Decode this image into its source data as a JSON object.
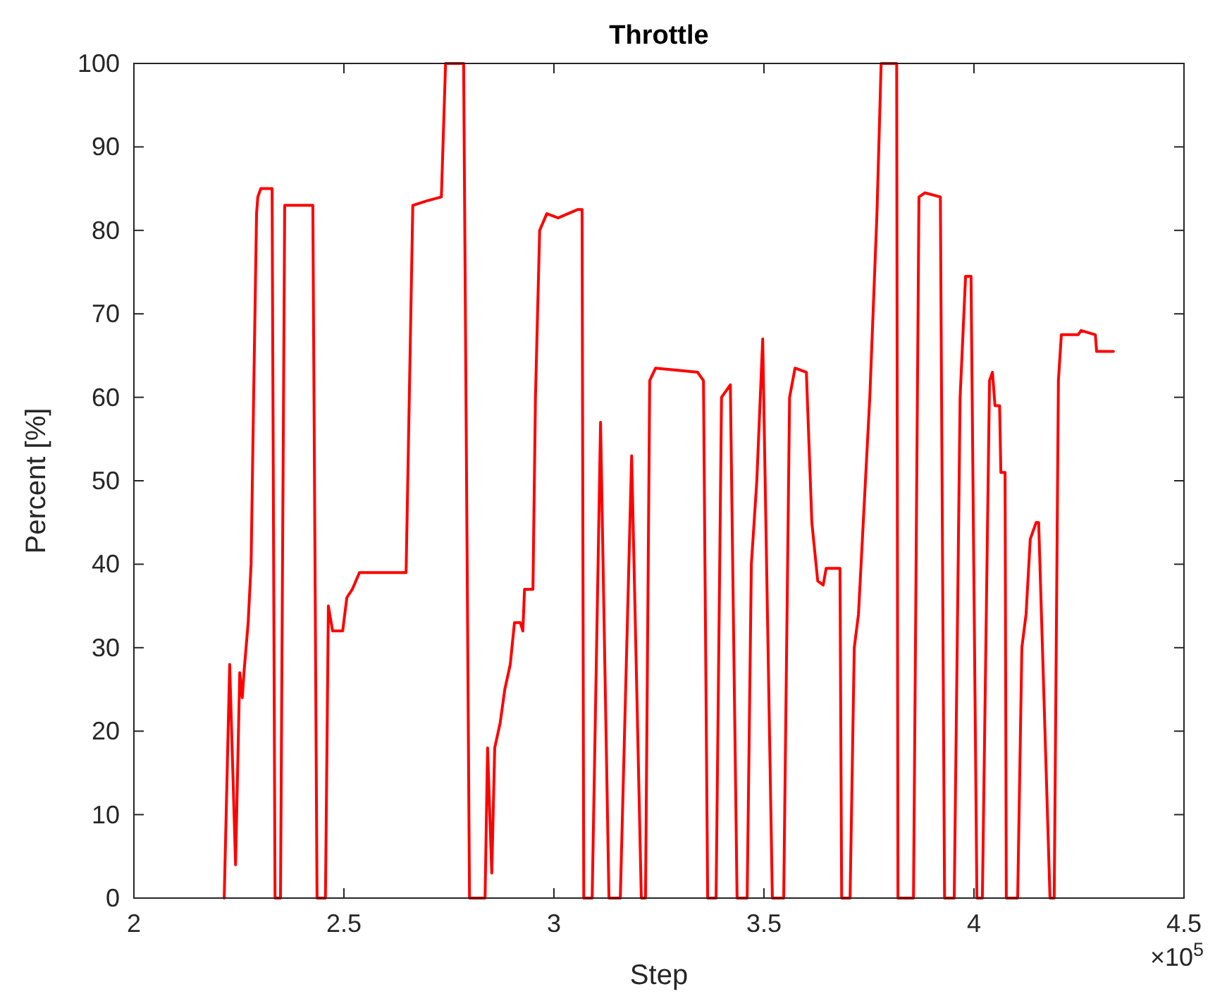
{
  "chart_data": {
    "type": "line",
    "title": "Throttle",
    "xlabel": "Step",
    "ylabel": "Percent [%]",
    "annotations": [
      "×10$^{5}$"
    ],
    "xlim": [
      2,
      4.5
    ],
    "xticks": [
      2,
      2.5,
      3,
      3.5,
      4,
      4.5
    ],
    "ylim": [
      0,
      100
    ],
    "yticks": [
      0,
      10,
      20,
      30,
      40,
      50,
      60,
      70,
      80,
      90,
      100
    ],
    "grid": false,
    "marker": "none",
    "line_style": "solid",
    "series": [
      {
        "color": "#ff0000",
        "x": [
          2.215,
          2.228,
          2.242,
          2.252,
          2.258,
          2.262,
          2.272,
          2.279,
          2.285,
          2.292,
          2.295,
          2.302,
          2.329,
          2.336,
          2.349,
          2.359,
          2.426,
          2.436,
          2.456,
          2.463,
          2.473,
          2.497,
          2.507,
          2.52,
          2.537,
          2.648,
          2.664,
          2.695,
          2.732,
          2.742,
          2.785,
          2.799,
          2.836,
          2.842,
          2.852,
          2.859,
          2.872,
          2.883,
          2.896,
          2.906,
          2.92,
          2.926,
          2.93,
          2.95,
          2.956,
          2.966,
          2.983,
          3.01,
          3.057,
          3.067,
          3.071,
          3.091,
          3.111,
          3.131,
          3.158,
          3.185,
          3.208,
          3.218,
          3.228,
          3.242,
          3.342,
          3.356,
          3.366,
          3.386,
          3.399,
          3.42,
          3.436,
          3.46,
          3.47,
          3.483,
          3.497,
          3.52,
          3.547,
          3.561,
          3.574,
          3.601,
          3.614,
          3.628,
          3.641,
          3.648,
          3.681,
          3.685,
          3.705,
          3.715,
          3.725,
          3.752,
          3.769,
          3.779,
          3.816,
          3.819,
          3.856,
          3.869,
          3.883,
          3.92,
          3.93,
          3.953,
          3.967,
          3.98,
          3.993,
          4.007,
          4.02,
          4.037,
          4.044,
          4.05,
          4.061,
          4.064,
          4.074,
          4.077,
          4.104,
          4.114,
          4.124,
          4.134,
          4.148,
          4.154,
          4.181,
          4.191,
          4.201,
          4.208,
          4.248,
          4.255,
          4.289,
          4.292,
          4.332
        ],
        "values": [
          0,
          28,
          4,
          27,
          24,
          27,
          33,
          40,
          60,
          82,
          84,
          85,
          85,
          0,
          0,
          83,
          83,
          0,
          0,
          35,
          32,
          32,
          36,
          37,
          39,
          39,
          83,
          83.5,
          84,
          100,
          100,
          0,
          0,
          18,
          3,
          18,
          21,
          25,
          28,
          33,
          33,
          32,
          37,
          37,
          60,
          80,
          82,
          81.5,
          82.5,
          82.5,
          0,
          0,
          57,
          0,
          0,
          53,
          0,
          0,
          62,
          63.5,
          63,
          62,
          0,
          0,
          60,
          61.5,
          0,
          0,
          40,
          50,
          67,
          0,
          0,
          60,
          63.5,
          63,
          45,
          38,
          37.5,
          39.5,
          39.5,
          0,
          0,
          30,
          34,
          60,
          82,
          100,
          100,
          0,
          0,
          84,
          84.5,
          84,
          0,
          0,
          60,
          74.5,
          74.5,
          0,
          0,
          62,
          63,
          59,
          59,
          51,
          51,
          0,
          0,
          30,
          34,
          43,
          45,
          45,
          0,
          0,
          62,
          67.5,
          67.5,
          68,
          67.5,
          65.5,
          65.5
        ]
      }
    ]
  }
}
